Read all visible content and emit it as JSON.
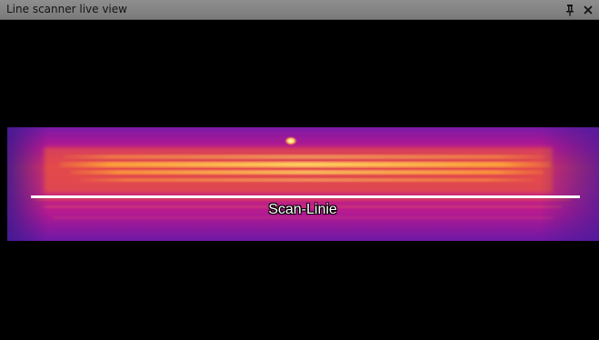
{
  "window": {
    "title": "Line scanner live view",
    "pin_icon": "pin-icon",
    "close_icon": "close-icon"
  },
  "view": {
    "image_type": "thermal line scan (heat palette)",
    "palette": [
      "#3a1a8c",
      "#8a10b0",
      "#c21888",
      "#e0404a",
      "#f07a20",
      "#ffb030",
      "#fff0a0"
    ],
    "scan_line_label": "Scan-Linie",
    "scan_line_color": "#ffffff"
  }
}
